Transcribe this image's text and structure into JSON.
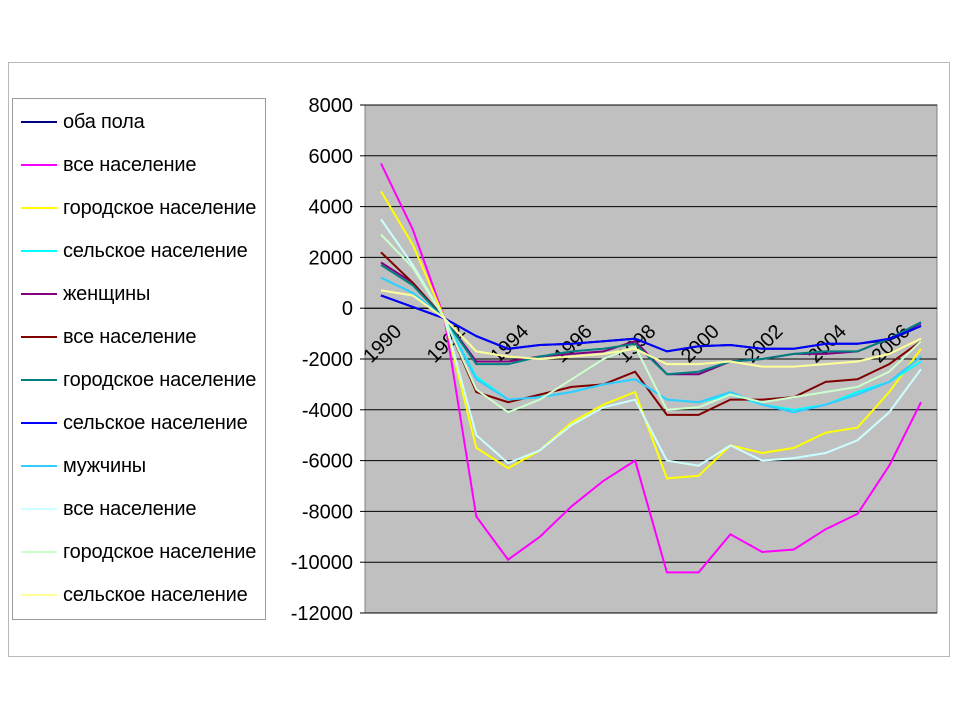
{
  "chart_data": {
    "type": "line",
    "title": "",
    "xlabel": "",
    "ylabel": "",
    "ylim": [
      -12000,
      8000
    ],
    "yticks": [
      8000,
      6000,
      4000,
      2000,
      0,
      -2000,
      -4000,
      -6000,
      -8000,
      -10000,
      -12000
    ],
    "ytick_labels": [
      "8000",
      "6000",
      "4000",
      "2000",
      "0",
      "-2000",
      "-4000",
      "-6000",
      "-8000",
      "-10000",
      "-12000"
    ],
    "x": [
      1990,
      1991,
      1992,
      1993,
      1994,
      1995,
      1996,
      1997,
      1998,
      1999,
      2000,
      2001,
      2002,
      2003,
      2004,
      2005,
      2006,
      2007
    ],
    "xtick_labels": [
      "1990",
      "1992",
      "1994",
      "1996",
      "1998",
      "2000",
      "2002",
      "2004",
      "2006"
    ],
    "xtick_values": [
      1990,
      1992,
      1994,
      1996,
      1998,
      2000,
      2002,
      2004,
      2006
    ],
    "plot_background": "#c0c0c0",
    "grid": true,
    "legend_position": "left",
    "series": [
      {
        "name": "оба пола",
        "color": "#000080",
        "values": [
          500,
          50,
          -400,
          -1100,
          -1600,
          -1450,
          -1400,
          -1300,
          -1200,
          -1700,
          -1500,
          -1450,
          -1600,
          -1600,
          -1400,
          -1400,
          -1250,
          -700
        ]
      },
      {
        "name": "все население",
        "color": "#ff00ff",
        "values": [
          5700,
          3100,
          -400,
          -8200,
          -9900,
          -9000,
          -7800,
          -6800,
          -6000,
          -10400,
          -10400,
          -8900,
          -9600,
          -9500,
          -8700,
          -8100,
          -6200,
          -3700
        ]
      },
      {
        "name": "городское население",
        "color": "#ffff00",
        "values": [
          4600,
          2500,
          -400,
          -5500,
          -6300,
          -5600,
          -4500,
          -3800,
          -3300,
          -6700,
          -6600,
          -5400,
          -5700,
          -5500,
          -4900,
          -4700,
          -3300,
          -1600
        ]
      },
      {
        "name": "сельское население",
        "color": "#00ffff",
        "values": [
          1200,
          600,
          -400,
          -2700,
          -3600,
          -3500,
          -3300,
          -3000,
          -2800,
          -3600,
          -3700,
          -3400,
          -3800,
          -4000,
          -3800,
          -3300,
          -2900,
          -2100
        ]
      },
      {
        "name": "женщины",
        "color": "#800080",
        "values": [
          1800,
          1000,
          -400,
          -2100,
          -2100,
          -1900,
          -1800,
          -1700,
          -1300,
          -2600,
          -2600,
          -2100,
          -2000,
          -1800,
          -1800,
          -1700,
          -1200,
          -600
        ]
      },
      {
        "name": "все население",
        "color": "#800000",
        "values": [
          2200,
          1000,
          -400,
          -3300,
          -3700,
          -3400,
          -3100,
          -3000,
          -2500,
          -4200,
          -4200,
          -3600,
          -3600,
          -3500,
          -2900,
          -2800,
          -2200,
          -1300
        ]
      },
      {
        "name": "городское население",
        "color": "#008080",
        "values": [
          1700,
          900,
          -400,
          -2200,
          -2200,
          -1900,
          -1700,
          -1600,
          -1400,
          -2600,
          -2500,
          -2100,
          -2000,
          -1800,
          -1700,
          -1700,
          -1200,
          -550
        ]
      },
      {
        "name": "сельское население",
        "color": "#0000ff",
        "values": [
          500,
          50,
          -400,
          -1100,
          -1600,
          -1450,
          -1400,
          -1300,
          -1200,
          -1700,
          -1500,
          -1450,
          -1600,
          -1600,
          -1400,
          -1400,
          -1200,
          -700
        ]
      },
      {
        "name": "мужчины",
        "color": "#33ccff",
        "values": [
          1200,
          600,
          -400,
          -2800,
          -3600,
          -3500,
          -3300,
          -3000,
          -2800,
          -3600,
          -3700,
          -3300,
          -3800,
          -4100,
          -3800,
          -3400,
          -2900,
          -1900
        ]
      },
      {
        "name": "все население",
        "color": "#ccffff",
        "values": [
          3500,
          1700,
          -400,
          -5000,
          -6100,
          -5600,
          -4600,
          -3900,
          -3600,
          -6000,
          -6200,
          -5400,
          -6000,
          -5900,
          -5700,
          -5200,
          -4100,
          -2400
        ]
      },
      {
        "name": "городское население",
        "color": "#ccffcc",
        "values": [
          2900,
          1600,
          -400,
          -3200,
          -4100,
          -3600,
          -2800,
          -2000,
          -1500,
          -4000,
          -3900,
          -3400,
          -3700,
          -3500,
          -3300,
          -3100,
          -2500,
          -1300
        ]
      },
      {
        "name": "сельское население",
        "color": "#ffff99",
        "values": [
          700,
          500,
          -400,
          -1700,
          -1900,
          -2000,
          -1900,
          -1800,
          -1600,
          -2200,
          -2200,
          -2100,
          -2300,
          -2300,
          -2200,
          -2100,
          -1800,
          -1200
        ]
      }
    ]
  }
}
